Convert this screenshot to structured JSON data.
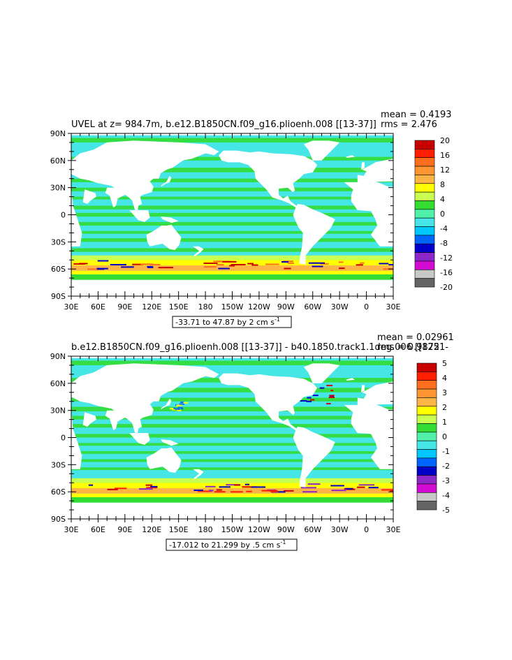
{
  "chart_data": [
    {
      "type": "heatmap",
      "title": "UVEL at z= 984.7m, b.e12.B1850CN.f09_g16.plioenh.008 [[13-37]]",
      "stats": {
        "mean": "mean = 0.4193",
        "rms": "rms = 2.476"
      },
      "contour_info": "-33.71 to 47.87 by 2 cm s",
      "contour_info_sup": "-1",
      "x_ticks": [
        "30E",
        "60E",
        "90E",
        "120E",
        "150E",
        "180",
        "150W",
        "120W",
        "90W",
        "60W",
        "30W",
        "0",
        "30E"
      ],
      "y_ticks": [
        "90N",
        "60N",
        "30N",
        "0",
        "30S",
        "60S",
        "90S"
      ],
      "colorbar": {
        "labels": [
          "20",
          "16",
          "12",
          "8",
          "4",
          "0",
          "-4",
          "-8",
          "-12",
          "-16",
          "-20"
        ],
        "colors": [
          "#c80000",
          "#ff1e00",
          "#ff6e1e",
          "#ff9632",
          "#ffb446",
          "#ffff00",
          "#c8ff50",
          "#32dc32",
          "#50f0aa",
          "#46e6e6",
          "#00c8ff",
          "#0064ff",
          "#0000c8",
          "#8c28c8",
          "#d20ad2",
          "#c8c8c8",
          "#646464"
        ]
      }
    },
    {
      "type": "heatmap",
      "title": "b.e12.B1850CN.f09_g16.plioenh.008 [[13-37]] - b40.1850.track1.1deg.006 [[1251-",
      "stats": {
        "mean": "mean = 0.02961",
        "rms": "rms = 0.9872"
      },
      "contour_info": "-17.012 to 21.299 by .5 cm s",
      "contour_info_sup": "-1",
      "x_ticks": [
        "30E",
        "60E",
        "90E",
        "120E",
        "150E",
        "180",
        "150W",
        "120W",
        "90W",
        "60W",
        "30W",
        "0",
        "30E"
      ],
      "y_ticks": [
        "90N",
        "60N",
        "30N",
        "0",
        "30S",
        "60S",
        "90S"
      ],
      "colorbar": {
        "labels": [
          "5",
          "4",
          "3",
          "2",
          "1",
          "0",
          "-1",
          "-2",
          "-3",
          "-4",
          "-5"
        ],
        "colors": [
          "#c80000",
          "#ff1e00",
          "#ff6e1e",
          "#ff9632",
          "#ffb446",
          "#ffff00",
          "#c8ff50",
          "#32dc32",
          "#50f0aa",
          "#46e6e6",
          "#00c8ff",
          "#0064ff",
          "#0000c8",
          "#8c28c8",
          "#d20ad2",
          "#c8c8c8",
          "#646464"
        ]
      }
    }
  ]
}
